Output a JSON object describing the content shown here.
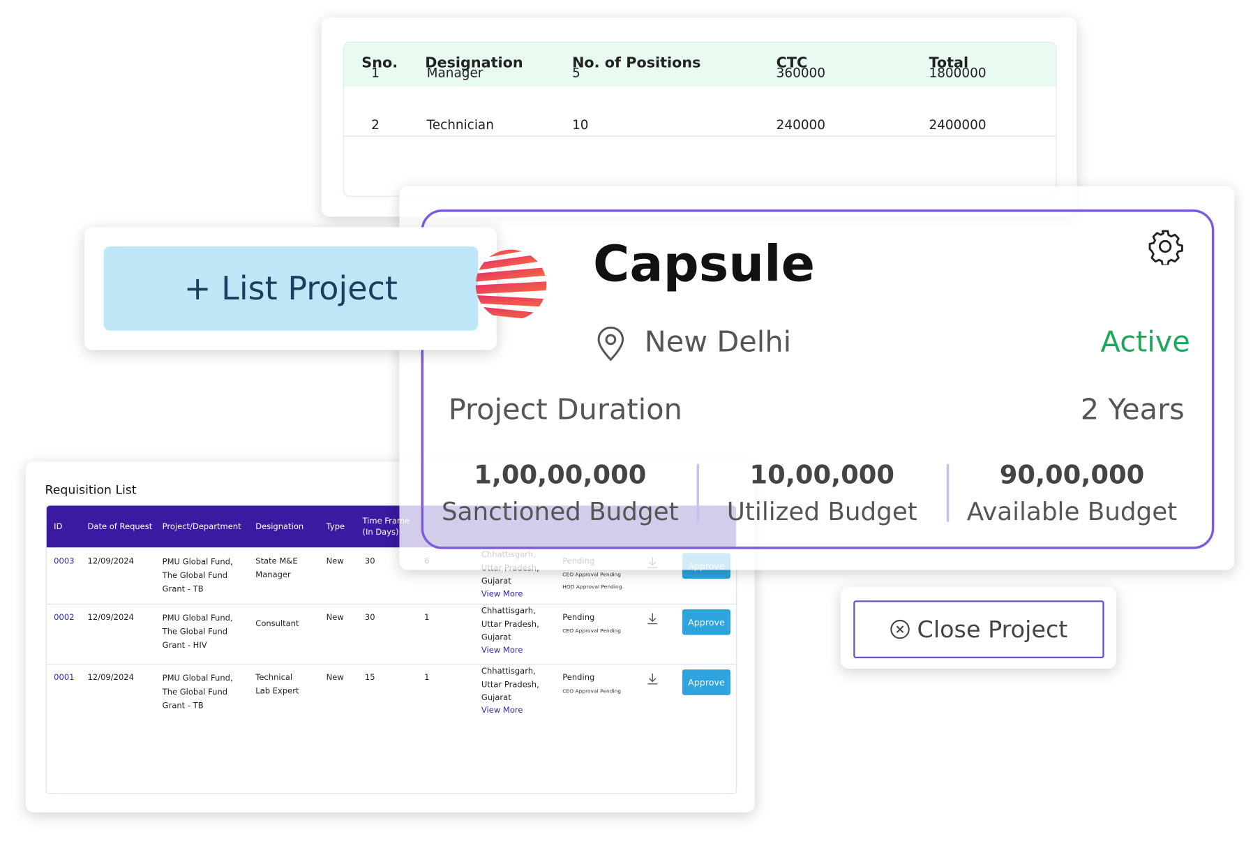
{
  "position_table": {
    "headers": [
      "Sno.",
      "Designation",
      "No. of Positions",
      "CTC",
      "Total"
    ],
    "rows": [
      [
        "1",
        "Manager",
        "5",
        "360000",
        "1800000"
      ],
      [
        "2",
        "Technician",
        "10",
        "240000",
        "2400000"
      ]
    ]
  },
  "list_project": {
    "button": "+ List Project"
  },
  "project_card": {
    "name": "Capsule",
    "location": "New Delhi",
    "status": "Active",
    "duration_label": "Project Duration",
    "duration_value": "2 Years",
    "budgets": [
      {
        "amount": "1,00,00,000",
        "label": "Sanctioned Budget"
      },
      {
        "amount": "10,00,000",
        "label": "Utilized Budget"
      },
      {
        "amount": "90,00,000",
        "label": "Available Budget"
      }
    ]
  },
  "requisition": {
    "title": "Requisition List",
    "headers": [
      "ID",
      "Date of Request",
      "Project/Department",
      "Designation",
      "Type",
      "Time Frame\n(In Days)"
    ],
    "rows": [
      {
        "id": "0003",
        "date": "12/09/2024",
        "project": "PMU Global Fund,\nThe Global Fund\nGrant - TB",
        "designation": "State M&E\nManager",
        "type": "New",
        "time_frame": "30",
        "positions": "6",
        "location": "Chhattisgarh,\nUttar Pradesh,\nGujarat",
        "view_more": "View More",
        "status": "Pending",
        "approvals": [
          "CEO Approval Pending",
          "HOD Approval Pending"
        ],
        "action": "Approve"
      },
      {
        "id": "0002",
        "date": "12/09/2024",
        "project": "PMU Global Fund,\nThe Global Fund\nGrant - HIV",
        "designation": "Consultant",
        "type": "New",
        "time_frame": "30",
        "positions": "1",
        "location": "Chhattisgarh,\nUttar Pradesh,\nGujarat",
        "view_more": "View More",
        "status": "Pending",
        "approvals": [
          "CEO Approval Pending"
        ],
        "action": "Approve"
      },
      {
        "id": "0001",
        "date": "12/09/2024",
        "project": "PMU Global Fund,\nThe Global Fund\nGrant - TB",
        "designation": "Technical\nLab Expert",
        "type": "New",
        "time_frame": "15",
        "positions": "1",
        "location": "Chhattisgarh,\nUttar Pradesh,\nGujarat",
        "view_more": "View More",
        "status": "Pending",
        "approvals": [
          "CEO Approval Pending"
        ],
        "action": "Approve"
      }
    ]
  },
  "close_project": {
    "button": "Close Project"
  }
}
